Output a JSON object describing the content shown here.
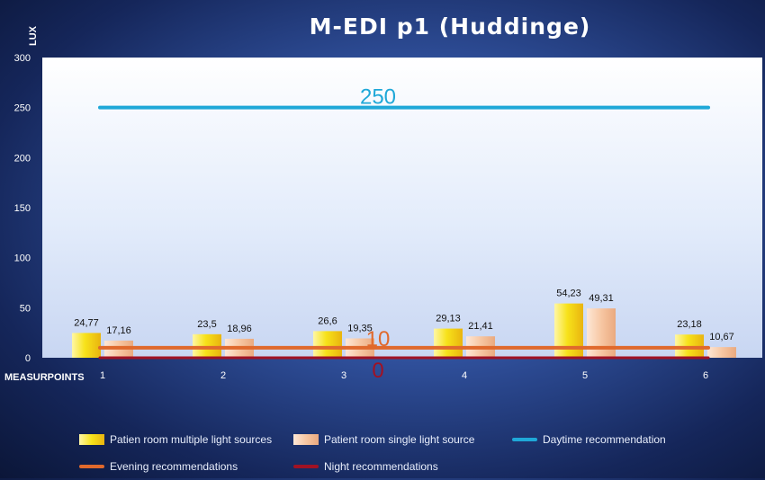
{
  "chart_data": {
    "type": "bar",
    "title": "M-EDI p1 (Huddinge)",
    "ylabel": "LUX",
    "xlabel": "MEASURPOINTS",
    "ylim": [
      0,
      300
    ],
    "yticks": [
      0,
      50,
      100,
      150,
      200,
      250,
      300
    ],
    "categories": [
      "1",
      "2",
      "3",
      "4",
      "5",
      "6"
    ],
    "series": [
      {
        "name": "Patien room multiple light sources",
        "values": [
          24.77,
          23.5,
          26.6,
          29.13,
          54.23,
          23.18
        ],
        "labels": [
          "24,77",
          "23,5",
          "26,6",
          "29,13",
          "54,23",
          "23,18"
        ],
        "color": "#f7e21a"
      },
      {
        "name": "Patient room single light source",
        "values": [
          17.16,
          18.96,
          19.35,
          21.41,
          49.31,
          10.67
        ],
        "labels": [
          "17,16",
          "18,96",
          "19,35",
          "21,41",
          "49,31",
          "10,67"
        ],
        "color": "#f7c7a3"
      }
    ],
    "reference_lines": [
      {
        "name": "Daytime recommendation",
        "value": 250,
        "label": "250",
        "color": "#1fa8d8"
      },
      {
        "name": "Evening recommendations",
        "value": 10,
        "label": "10",
        "color": "#e0692c"
      },
      {
        "name": "Night recommendations",
        "value": 0,
        "label": "0",
        "color": "#a01224"
      }
    ],
    "legend_position": "bottom"
  }
}
